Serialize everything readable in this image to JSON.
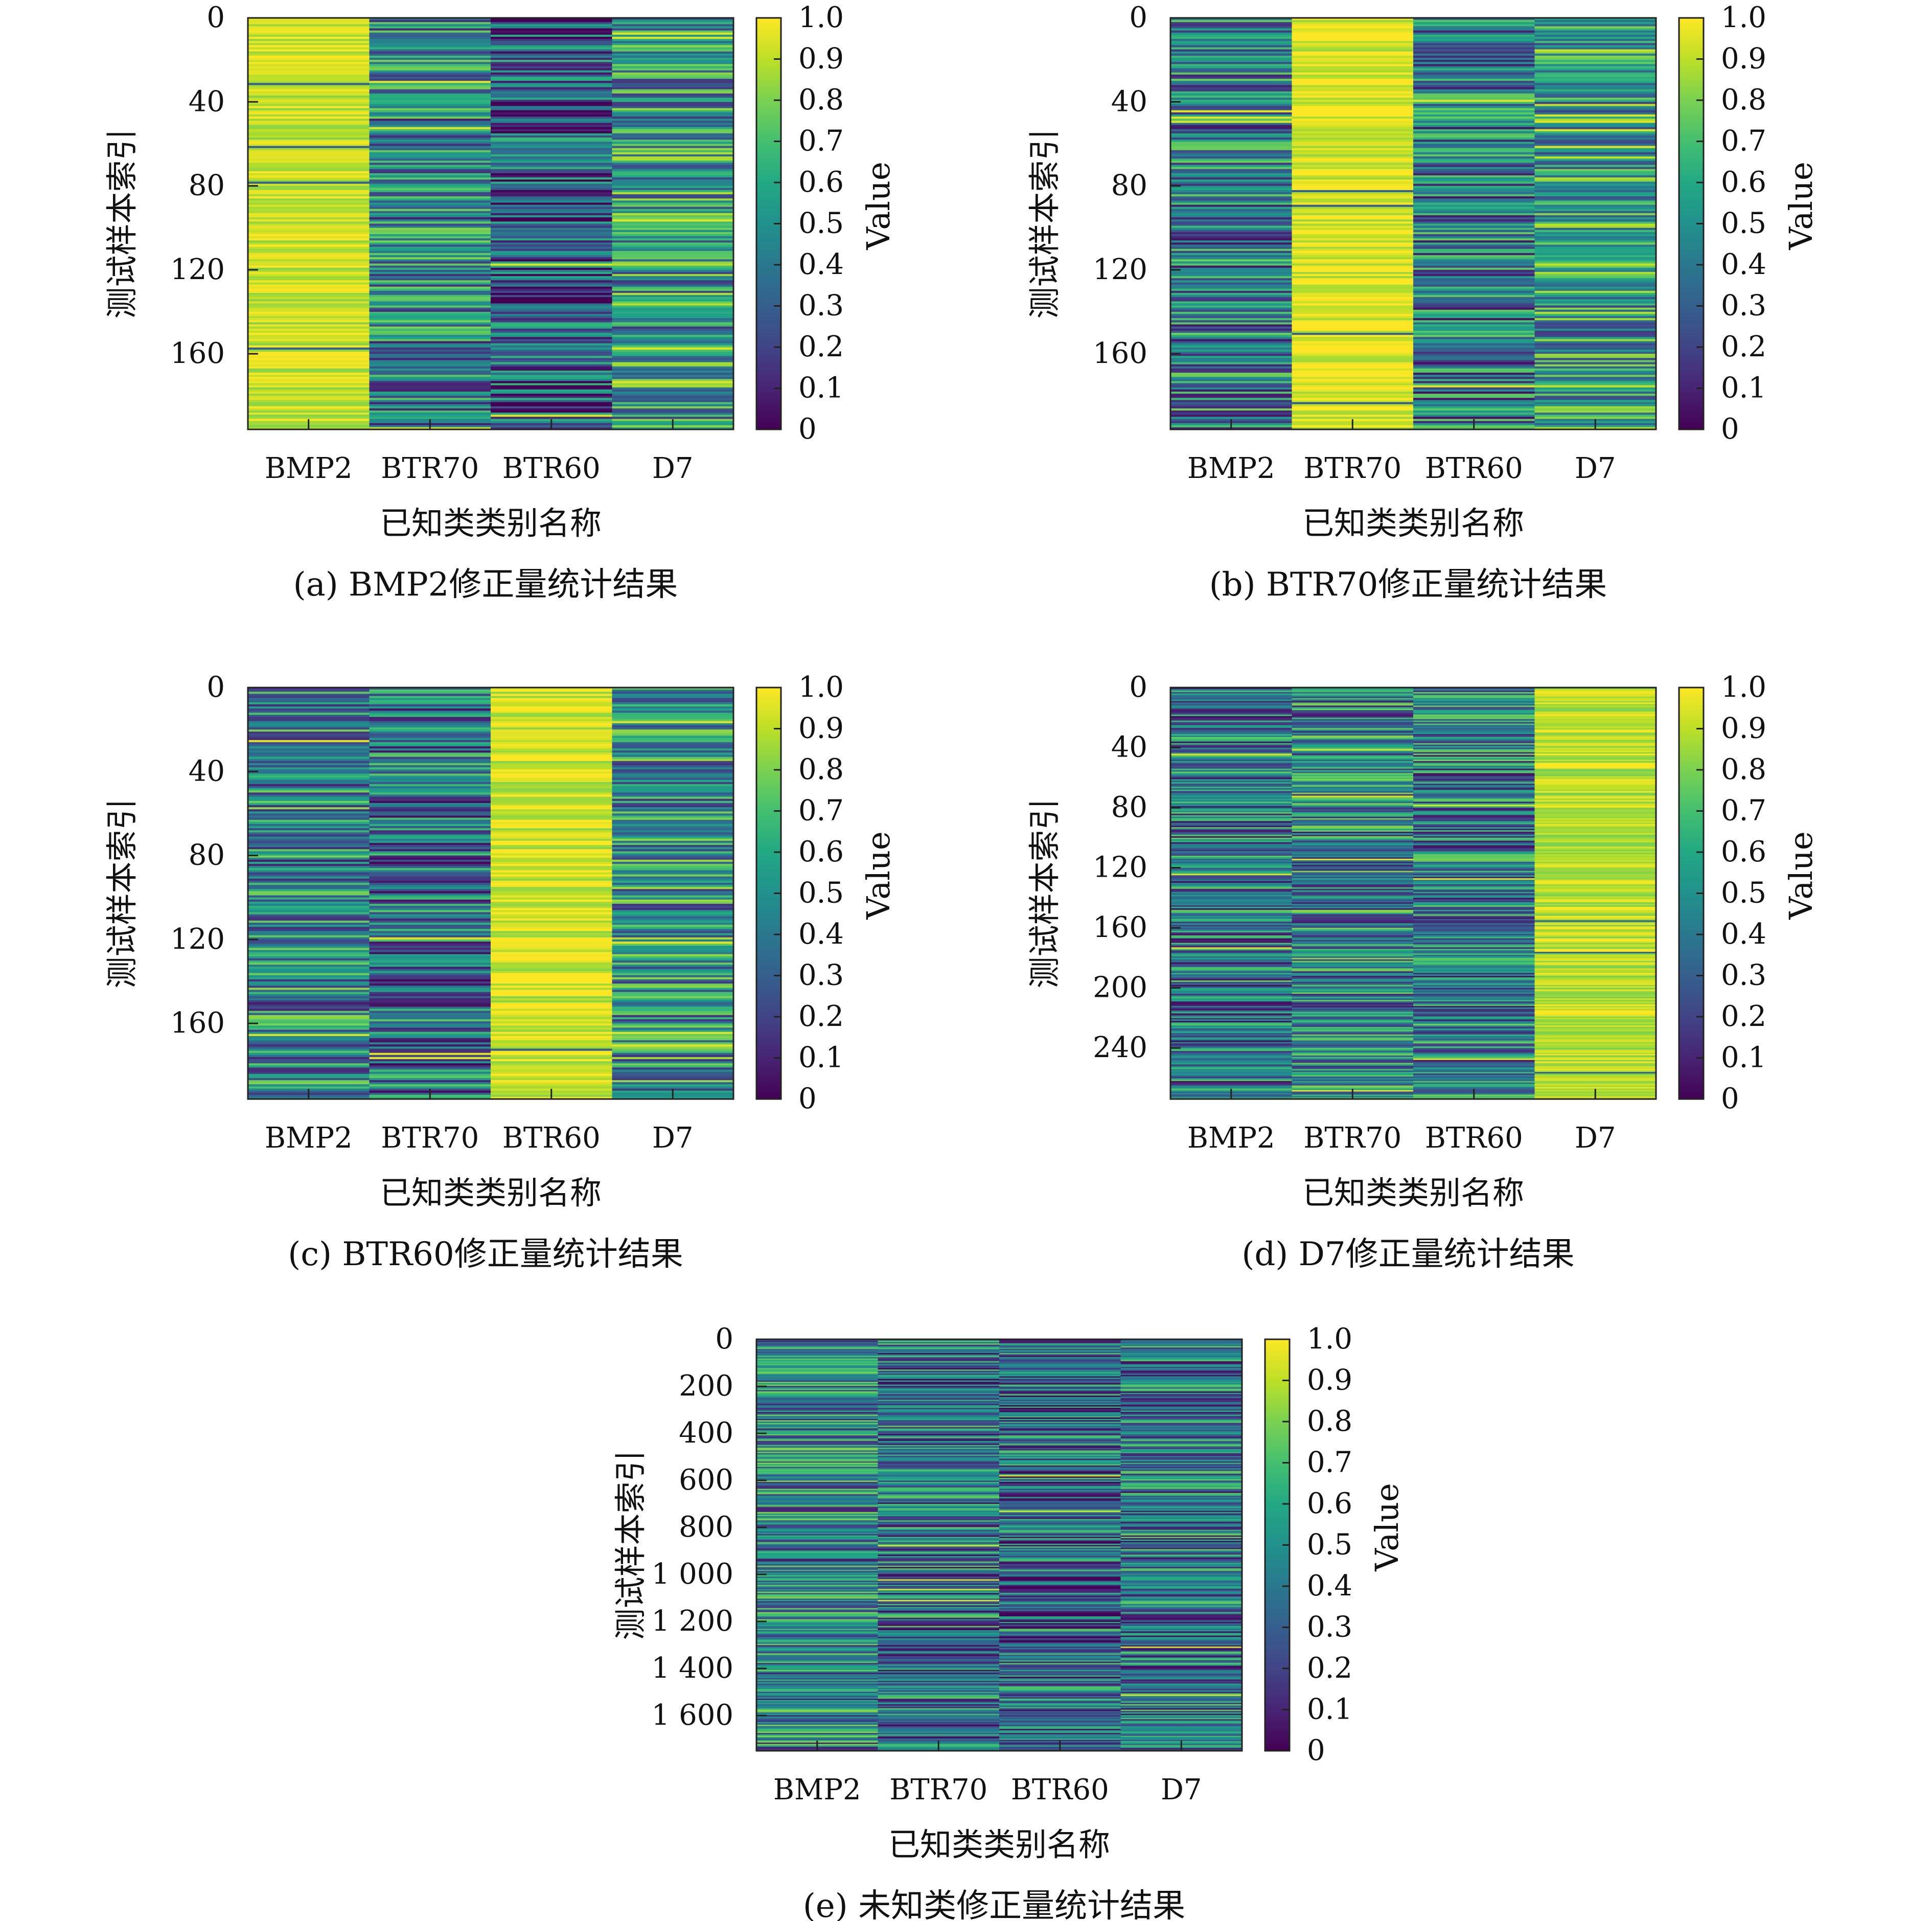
{
  "figure": {
    "cmap": [
      "#440154",
      "#482475",
      "#414487",
      "#355f8d",
      "#2a788e",
      "#21918c",
      "#22a884",
      "#44bf70",
      "#7ad151",
      "#bddf26",
      "#fde725"
    ]
  },
  "chart_data": [
    {
      "type": "heatmap",
      "caption": "(a) BMP2修正量统计结果",
      "xlabel": "已知类类别名称",
      "ylabel": "测试样本索引",
      "colorbar_label": "Value",
      "categories": [
        "BMP2",
        "BTR70",
        "BTR60",
        "D7"
      ],
      "rows": 196,
      "ylim": [
        0,
        196
      ],
      "yticks": [
        0,
        40,
        80,
        120,
        160
      ],
      "ytick_labels": [
        "0",
        "40",
        "80",
        "120",
        "160"
      ],
      "clim": [
        0,
        1
      ],
      "cbar_ticks": [
        "0",
        "0.1",
        "0.2",
        "0.3",
        "0.4",
        "0.5",
        "0.6",
        "0.7",
        "0.8",
        "0.9",
        "1.0"
      ],
      "dominant_category": "BMP2",
      "column_means": [
        0.92,
        0.45,
        0.3,
        0.52
      ]
    },
    {
      "type": "heatmap",
      "caption": "(b) BTR70修正量统计结果",
      "xlabel": "已知类类别名称",
      "ylabel": "测试样本索引",
      "colorbar_label": "Value",
      "categories": [
        "BMP2",
        "BTR70",
        "BTR60",
        "D7"
      ],
      "rows": 196,
      "ylim": [
        0,
        196
      ],
      "yticks": [
        0,
        40,
        80,
        120,
        160
      ],
      "ytick_labels": [
        "0",
        "40",
        "80",
        "120",
        "160"
      ],
      "clim": [
        0,
        1
      ],
      "cbar_ticks": [
        "0",
        "0.1",
        "0.2",
        "0.3",
        "0.4",
        "0.5",
        "0.6",
        "0.7",
        "0.8",
        "0.9",
        "1.0"
      ],
      "dominant_category": "BTR70",
      "column_means": [
        0.42,
        0.95,
        0.4,
        0.55
      ]
    },
    {
      "type": "heatmap",
      "caption": "(c) BTR60修正量统计结果",
      "xlabel": "已知类类别名称",
      "ylabel": "测试样本索引",
      "colorbar_label": "Value",
      "categories": [
        "BMP2",
        "BTR70",
        "BTR60",
        "D7"
      ],
      "rows": 196,
      "ylim": [
        0,
        196
      ],
      "yticks": [
        0,
        40,
        80,
        120,
        160
      ],
      "ytick_labels": [
        "0",
        "40",
        "80",
        "120",
        "160"
      ],
      "clim": [
        0,
        1
      ],
      "cbar_ticks": [
        "0",
        "0.1",
        "0.2",
        "0.3",
        "0.4",
        "0.5",
        "0.6",
        "0.7",
        "0.8",
        "0.9",
        "1.0"
      ],
      "dominant_category": "BTR60",
      "column_means": [
        0.45,
        0.38,
        0.93,
        0.5
      ]
    },
    {
      "type": "heatmap",
      "caption": "(d) D7修正量统计结果",
      "xlabel": "已知类类别名称",
      "ylabel": "测试样本索引",
      "colorbar_label": "Value",
      "categories": [
        "BMP2",
        "BTR70",
        "BTR60",
        "D7"
      ],
      "rows": 274,
      "ylim": [
        0,
        274
      ],
      "yticks": [
        0,
        40,
        80,
        120,
        160,
        200,
        240
      ],
      "ytick_labels": [
        "0",
        "40",
        "80",
        "120",
        "160",
        "200",
        "240"
      ],
      "clim": [
        0,
        1
      ],
      "cbar_ticks": [
        "0",
        "0.1",
        "0.2",
        "0.3",
        "0.4",
        "0.5",
        "0.6",
        "0.7",
        "0.8",
        "0.9",
        "1.0"
      ],
      "dominant_category": "D7",
      "column_means": [
        0.4,
        0.45,
        0.42,
        0.9
      ]
    },
    {
      "type": "heatmap",
      "caption": "(e) 未知类修正量统计结果",
      "xlabel": "已知类类别名称",
      "ylabel": "测试样本索引",
      "colorbar_label": "Value",
      "categories": [
        "BMP2",
        "BTR70",
        "BTR60",
        "D7"
      ],
      "rows": 1750,
      "ylim": [
        0,
        1750
      ],
      "yticks": [
        0,
        200,
        400,
        600,
        800,
        1000,
        1200,
        1400,
        1600
      ],
      "ytick_labels": [
        "0",
        "200",
        "400",
        "600",
        "800",
        "1 000",
        "1 200",
        "1 400",
        "1 600"
      ],
      "clim": [
        0,
        1
      ],
      "cbar_ticks": [
        "0",
        "0.1",
        "0.2",
        "0.3",
        "0.4",
        "0.5",
        "0.6",
        "0.7",
        "0.8",
        "0.9",
        "1.0"
      ],
      "dominant_category": "",
      "column_means": [
        0.45,
        0.38,
        0.35,
        0.4
      ]
    }
  ]
}
